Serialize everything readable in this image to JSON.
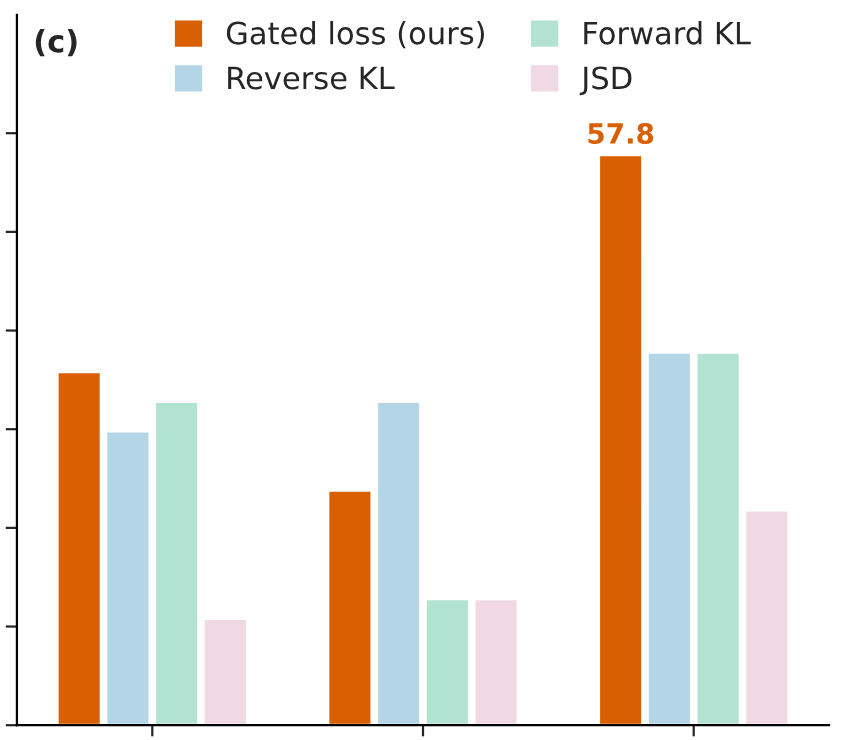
{
  "chart_data": {
    "type": "bar",
    "categories": [
      null,
      null,
      null
    ],
    "annotations": [
      "(c)"
    ],
    "series": [
      {
        "name": "Gated loss (ours)",
        "color": "#d95f02",
        "values": [
          35.8,
          23.8,
          57.8
        ],
        "value_labels": [
          null,
          null,
          "57.8"
        ]
      },
      {
        "name": "Reverse KL",
        "color": "#b3d5e6",
        "values": [
          29.8,
          32.8,
          37.8
        ]
      },
      {
        "name": "Forward KL",
        "color": "#b2e2d2",
        "values": [
          32.8,
          12.8,
          37.8
        ]
      },
      {
        "name": "JSD",
        "color": "#f0d9e3",
        "values": [
          10.8,
          12.8,
          21.8
        ]
      }
    ],
    "ylim": [
      0,
      72
    ],
    "yticks": [
      {
        "value": 0,
        "label": null
      },
      {
        "value": 10,
        "label": null
      },
      {
        "value": 20,
        "label": null
      },
      {
        "value": 30,
        "label": null
      },
      {
        "value": 40,
        "label": null
      },
      {
        "value": 50,
        "label": null
      },
      {
        "value": 60,
        "label": null
      }
    ],
    "legend": "top",
    "grid": false
  }
}
